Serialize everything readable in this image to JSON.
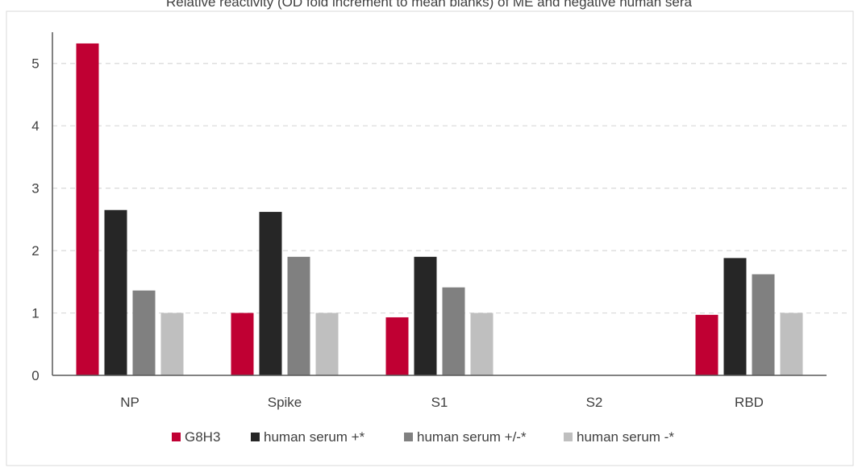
{
  "chart_data": {
    "type": "bar",
    "title": "Relative reactivity (OD fold increment to mean blanks) of ME and negative human sera",
    "xlabel": "",
    "ylabel": "",
    "categories": [
      "NP",
      "Spike",
      "S1",
      "S2",
      "RBD"
    ],
    "ylim": [
      0,
      5.5
    ],
    "yticks": [
      "0",
      "1",
      "2",
      "3",
      "4",
      "5"
    ],
    "grid": "horizontal dashed",
    "legend_position": "bottom",
    "series": [
      {
        "name": "G8H3",
        "color": "#c00033",
        "values": [
          5.32,
          1.0,
          0.93,
          0,
          0.97
        ]
      },
      {
        "name": "human serum +*",
        "color": "#262626",
        "values": [
          2.65,
          2.62,
          1.9,
          0,
          1.88
        ]
      },
      {
        "name": "human serum +/-*",
        "color": "#808080",
        "values": [
          1.36,
          1.9,
          1.41,
          0,
          1.62
        ]
      },
      {
        "name": "human serum -*",
        "color": "#bfbfbf",
        "values": [
          1.0,
          1.0,
          1.0,
          0,
          1.0
        ]
      }
    ]
  }
}
